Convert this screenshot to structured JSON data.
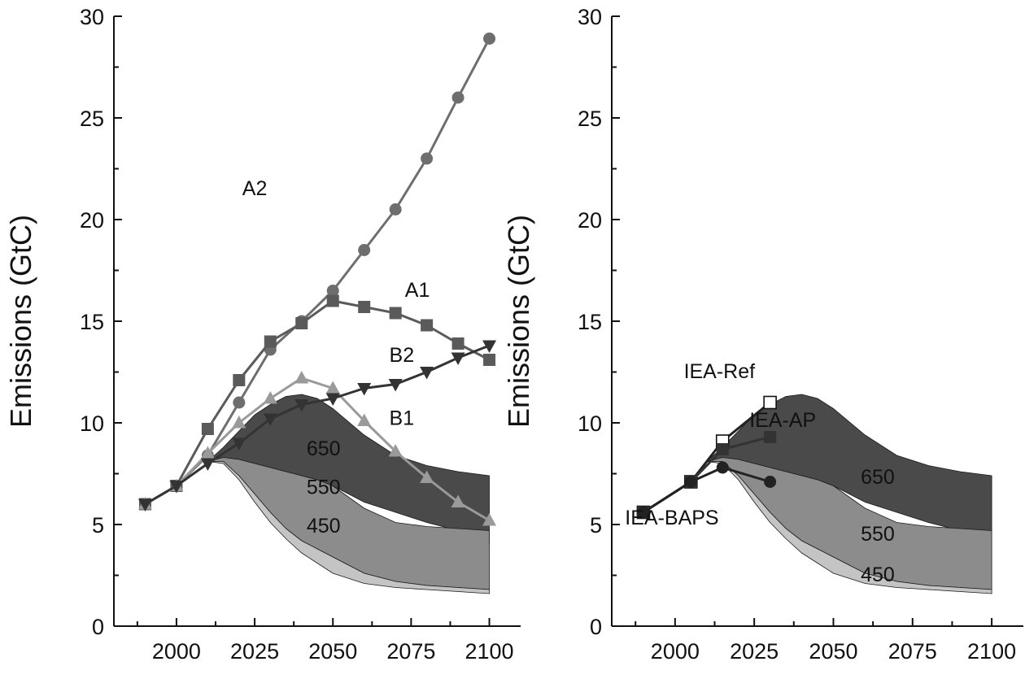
{
  "chart_data": [
    {
      "type": "line",
      "ylabel": "Emissions (GtC)",
      "xlim": [
        1980,
        2110
      ],
      "ylim": [
        0,
        30
      ],
      "xticks": [
        "2000",
        "2025",
        "2050",
        "2075",
        "2100"
      ],
      "yticks": [
        "0",
        "5",
        "10",
        "15",
        "20",
        "25",
        "30"
      ],
      "bands": [
        {
          "name": "650",
          "color": "#4a4a4a",
          "x": [
            2010,
            2015,
            2020,
            2025,
            2030,
            2035,
            2040,
            2045,
            2050,
            2060,
            2070,
            2080,
            2090,
            2100
          ],
          "upper": [
            8.1,
            8.8,
            9.6,
            10.4,
            10.9,
            11.3,
            11.4,
            11.2,
            10.7,
            9.4,
            8.4,
            7.9,
            7.6,
            7.4
          ],
          "lower": [
            8.1,
            8.3,
            8.2,
            8.0,
            7.8,
            7.6,
            7.4,
            7.2,
            6.9,
            6.1,
            5.6,
            5.1,
            4.7,
            4.1
          ]
        },
        {
          "name": "550",
          "color": "#8c8c8c",
          "x": [
            2010,
            2015,
            2020,
            2025,
            2030,
            2035,
            2040,
            2045,
            2050,
            2060,
            2070,
            2080,
            2090,
            2100
          ],
          "upper": [
            8.1,
            8.3,
            8.2,
            8.0,
            7.8,
            7.6,
            7.4,
            7.2,
            6.9,
            5.8,
            5.1,
            4.9,
            4.8,
            4.7
          ],
          "lower": [
            8.1,
            8.1,
            7.4,
            6.5,
            5.6,
            4.8,
            4.2,
            3.8,
            3.4,
            2.6,
            2.2,
            2.0,
            1.9,
            1.8
          ]
        },
        {
          "name": "450",
          "color": "#c4c4c4",
          "x": [
            2010,
            2015,
            2020,
            2025,
            2030,
            2035,
            2040,
            2045,
            2050,
            2060,
            2070,
            2080,
            2090,
            2100
          ],
          "upper": [
            8.1,
            8.1,
            7.4,
            6.5,
            5.6,
            4.8,
            4.2,
            3.8,
            3.4,
            2.6,
            2.2,
            2.0,
            1.9,
            1.8
          ],
          "lower": [
            8.1,
            8.0,
            7.2,
            6.1,
            5.1,
            4.3,
            3.6,
            3.1,
            2.6,
            2.1,
            1.9,
            1.8,
            1.7,
            1.6
          ]
        }
      ],
      "series": [
        {
          "name": "A2",
          "marker": "circle",
          "color": "#6e6e6e",
          "x": [
            1990,
            2000,
            2010,
            2020,
            2030,
            2040,
            2050,
            2060,
            2070,
            2080,
            2090,
            2100
          ],
          "values": [
            6.0,
            6.9,
            8.4,
            11.0,
            13.6,
            15.0,
            16.5,
            18.5,
            20.5,
            23.0,
            26.0,
            28.9
          ]
        },
        {
          "name": "A1",
          "marker": "square",
          "color": "#5a5a5a",
          "x": [
            1990,
            2000,
            2010,
            2020,
            2030,
            2040,
            2050,
            2060,
            2070,
            2080,
            2090,
            2100
          ],
          "values": [
            6.0,
            6.9,
            9.7,
            12.1,
            14.0,
            14.9,
            16.0,
            15.7,
            15.4,
            14.8,
            13.9,
            13.1
          ]
        },
        {
          "name": "B1",
          "marker": "triangle-up",
          "color": "#9a9a9a",
          "x": [
            1990,
            2000,
            2010,
            2020,
            2030,
            2040,
            2050,
            2060,
            2070,
            2080,
            2090,
            2100
          ],
          "values": [
            6.0,
            6.9,
            8.5,
            10.0,
            11.2,
            12.2,
            11.7,
            10.1,
            8.6,
            7.3,
            6.1,
            5.2
          ]
        },
        {
          "name": "B2",
          "marker": "triangle-down",
          "color": "#333333",
          "x": [
            1990,
            2000,
            2010,
            2020,
            2030,
            2040,
            2050,
            2060,
            2070,
            2080,
            2090,
            2100
          ],
          "values": [
            6.0,
            6.9,
            8.0,
            9.0,
            10.2,
            10.9,
            11.2,
            11.7,
            11.9,
            12.5,
            13.2,
            13.8
          ]
        }
      ],
      "annotations": [
        {
          "text": "A2",
          "x": 2025,
          "y": 21.2
        },
        {
          "text": "A1",
          "x": 2077,
          "y": 16.2
        },
        {
          "text": "B2",
          "x": 2072,
          "y": 13.0
        },
        {
          "text": "B1",
          "x": 2072,
          "y": 9.9
        },
        {
          "text": "650",
          "x": 2047,
          "y": 8.4
        },
        {
          "text": "550",
          "x": 2047,
          "y": 6.5
        },
        {
          "text": "450",
          "x": 2047,
          "y": 4.6
        }
      ]
    },
    {
      "type": "line",
      "ylabel": "Emissions (GtC)",
      "xlim": [
        1980,
        2110
      ],
      "ylim": [
        0,
        30
      ],
      "xticks": [
        "2000",
        "2025",
        "2050",
        "2075",
        "2100"
      ],
      "yticks": [
        "0",
        "5",
        "10",
        "15",
        "20",
        "25",
        "30"
      ],
      "bands": [
        {
          "name": "650",
          "color": "#4a4a4a",
          "x": [
            2010,
            2015,
            2020,
            2025,
            2030,
            2035,
            2040,
            2045,
            2050,
            2060,
            2070,
            2080,
            2090,
            2100
          ],
          "upper": [
            8.1,
            8.8,
            9.6,
            10.4,
            10.9,
            11.3,
            11.4,
            11.2,
            10.7,
            9.4,
            8.4,
            7.9,
            7.6,
            7.4
          ],
          "lower": [
            8.1,
            8.3,
            8.2,
            8.0,
            7.8,
            7.6,
            7.4,
            7.2,
            6.9,
            6.1,
            5.6,
            5.1,
            4.7,
            4.1
          ]
        },
        {
          "name": "550",
          "color": "#8c8c8c",
          "x": [
            2010,
            2015,
            2020,
            2025,
            2030,
            2035,
            2040,
            2045,
            2050,
            2060,
            2070,
            2080,
            2090,
            2100
          ],
          "upper": [
            8.1,
            8.3,
            8.2,
            8.0,
            7.8,
            7.6,
            7.4,
            7.2,
            6.9,
            5.8,
            5.1,
            4.9,
            4.8,
            4.7
          ],
          "lower": [
            8.1,
            8.1,
            7.4,
            6.5,
            5.6,
            4.8,
            4.2,
            3.8,
            3.4,
            2.6,
            2.2,
            2.0,
            1.9,
            1.8
          ]
        },
        {
          "name": "450",
          "color": "#c4c4c4",
          "x": [
            2010,
            2015,
            2020,
            2025,
            2030,
            2035,
            2040,
            2045,
            2050,
            2060,
            2070,
            2080,
            2090,
            2100
          ],
          "upper": [
            8.1,
            8.1,
            7.4,
            6.5,
            5.6,
            4.8,
            4.2,
            3.8,
            3.4,
            2.6,
            2.2,
            2.0,
            1.9,
            1.8
          ],
          "lower": [
            8.1,
            8.0,
            7.2,
            6.1,
            5.1,
            4.3,
            3.6,
            3.1,
            2.6,
            2.1,
            1.9,
            1.8,
            1.7,
            1.6
          ]
        }
      ],
      "series": [
        {
          "name": "IEA-Ref",
          "marker": "square-open",
          "color": "#222222",
          "x": [
            1990,
            2005,
            2015,
            2030
          ],
          "values": [
            5.6,
            7.1,
            9.1,
            11.0
          ]
        },
        {
          "name": "IEA-AP",
          "marker": "square",
          "color": "#333333",
          "x": [
            1990,
            2005,
            2015,
            2030
          ],
          "values": [
            5.6,
            7.1,
            8.7,
            9.3
          ]
        },
        {
          "name": "IEA-BAPS",
          "marker": "circle",
          "color": "#222222",
          "x": [
            1990,
            2005,
            2015,
            2030
          ],
          "values": [
            5.6,
            7.1,
            7.8,
            7.1
          ]
        }
      ],
      "annotations": [
        {
          "text": "IEA-Ref",
          "x": 2014,
          "y": 12.2
        },
        {
          "text": "IEA-AP",
          "x": 2034,
          "y": 9.8
        },
        {
          "text": "IEA-BAPS",
          "x": 1999,
          "y": 5.0
        },
        {
          "text": "650",
          "x": 2064,
          "y": 7.0
        },
        {
          "text": "550",
          "x": 2064,
          "y": 4.2
        },
        {
          "text": "450",
          "x": 2064,
          "y": 2.2
        }
      ]
    }
  ]
}
